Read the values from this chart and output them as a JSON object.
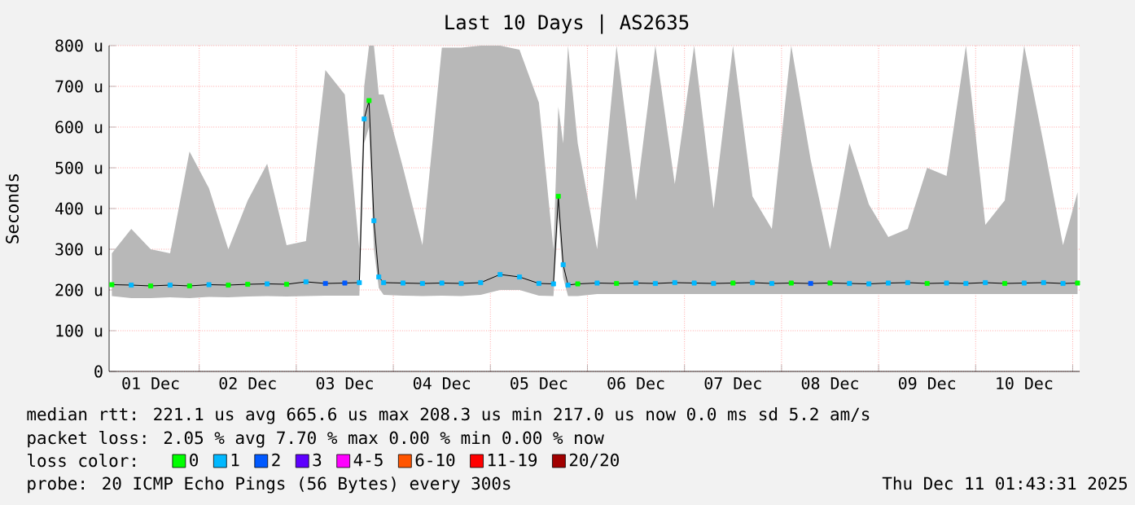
{
  "chart_data": {
    "type": "line",
    "title": "Last 10 Days | AS2635",
    "ylabel": "Seconds",
    "xlim": [
      "2025-12-01T01:43",
      "2025-12-11T01:43"
    ],
    "ylim": [
      0,
      800
    ],
    "xticks": [
      {
        "value": "2025-12-02",
        "label": null
      },
      {
        "value": "2025-12-03",
        "label": null
      },
      {
        "value": "2025-12-04",
        "label": null
      },
      {
        "value": "2025-12-05",
        "label": null
      },
      {
        "value": "2025-12-06",
        "label": null
      },
      {
        "value": "2025-12-07",
        "label": null
      },
      {
        "value": "2025-12-08",
        "label": null
      },
      {
        "value": "2025-12-09",
        "label": null
      },
      {
        "value": "2025-12-10",
        "label": null
      },
      {
        "value": "2025-12-11",
        "label": null
      },
      {
        "value": "2025-12-01T12:00",
        "label": "01 Dec"
      },
      {
        "value": "2025-12-02T12:00",
        "label": "02 Dec"
      },
      {
        "value": "2025-12-03T12:00",
        "label": "03 Dec"
      },
      {
        "value": "2025-12-04T12:00",
        "label": "04 Dec"
      },
      {
        "value": "2025-12-05T12:00",
        "label": "05 Dec"
      },
      {
        "value": "2025-12-06T12:00",
        "label": "06 Dec"
      },
      {
        "value": "2025-12-07T12:00",
        "label": "07 Dec"
      },
      {
        "value": "2025-12-08T12:00",
        "label": "08 Dec"
      },
      {
        "value": "2025-12-09T12:00",
        "label": "09 Dec"
      },
      {
        "value": "2025-12-10T12:00",
        "label": "10 Dec"
      }
    ],
    "yticks": [
      0,
      {
        "value": 100,
        "label": "100 u"
      },
      {
        "value": 200,
        "label": "200 u"
      },
      {
        "value": 300,
        "label": "300 u"
      },
      {
        "value": 400,
        "label": "400 u"
      },
      {
        "value": 500,
        "label": "500 u"
      },
      {
        "value": 600,
        "label": "600 u"
      },
      {
        "value": 700,
        "label": "700 u"
      },
      {
        "value": 800,
        "label": "800 u"
      }
    ],
    "grid": true,
    "legend": "bottom",
    "legend_title": "loss color:",
    "marker": "square",
    "series": [
      {
        "color": "#000000",
        "marker": "none",
        "x": [
          "2025-12-01T02:24",
          "2025-12-01T07:12",
          "2025-12-01T12:00",
          "2025-12-01T16:48",
          "2025-12-01T21:36",
          "2025-12-02T02:24",
          "2025-12-02T07:12",
          "2025-12-02T12:00",
          "2025-12-02T16:48",
          "2025-12-02T21:36",
          "2025-12-03T02:24",
          "2025-12-03T07:12",
          "2025-12-03T12:00",
          "2025-12-03T15:36",
          "2025-12-03T16:48",
          "2025-12-03T18:00",
          "2025-12-03T19:12",
          "2025-12-03T20:24",
          "2025-12-03T21:36",
          "2025-12-04T02:24",
          "2025-12-04T07:12",
          "2025-12-04T12:00",
          "2025-12-04T16:48",
          "2025-12-04T21:36",
          "2025-12-05T02:24",
          "2025-12-05T07:12",
          "2025-12-05T12:00",
          "2025-12-05T15:36",
          "2025-12-05T16:48",
          "2025-12-05T18:00",
          "2025-12-05T19:12",
          "2025-12-05T21:36",
          "2025-12-06T02:24",
          "2025-12-06T07:12",
          "2025-12-06T12:00",
          "2025-12-06T16:48",
          "2025-12-06T21:36",
          "2025-12-07T02:24",
          "2025-12-07T07:12",
          "2025-12-07T12:00",
          "2025-12-07T16:48",
          "2025-12-07T21:36",
          "2025-12-08T02:24",
          "2025-12-08T07:12",
          "2025-12-08T12:00",
          "2025-12-08T16:48",
          "2025-12-08T21:36",
          "2025-12-09T02:24",
          "2025-12-09T07:12",
          "2025-12-09T12:00",
          "2025-12-09T16:48",
          "2025-12-09T21:36",
          "2025-12-10T02:24",
          "2025-12-10T07:12",
          "2025-12-10T12:00",
          "2025-12-10T16:48",
          "2025-12-10T21:36",
          "2025-12-11T01:12"
        ],
        "values": [
          213,
          212,
          210,
          212,
          210,
          213,
          212,
          214,
          215,
          214,
          220,
          216,
          217,
          218,
          620,
          665,
          370,
          232,
          218,
          217,
          216,
          217,
          216,
          218,
          238,
          232,
          216,
          215,
          430,
          262,
          212,
          215,
          217,
          216,
          217,
          216,
          218,
          217,
          216,
          217,
          218,
          216,
          217,
          216,
          217,
          216,
          215,
          217,
          218,
          216,
          217,
          216,
          218,
          216,
          217,
          218,
          216,
          217
        ],
        "lower": [
          185,
          180,
          180,
          182,
          180,
          183,
          182,
          184,
          185,
          184,
          185,
          186,
          186,
          186,
          560,
          600,
          300,
          205,
          188,
          186,
          185,
          186,
          185,
          188,
          200,
          200,
          186,
          185,
          380,
          230,
          185,
          185,
          190,
          190,
          190,
          190,
          190,
          190,
          190,
          190,
          190,
          190,
          190,
          190,
          190,
          190,
          190,
          190,
          190,
          190,
          190,
          190,
          190,
          190,
          190,
          190,
          190,
          190
        ],
        "upper": [
          290,
          350,
          300,
          290,
          540,
          450,
          300,
          420,
          510,
          310,
          320,
          740,
          680,
          300,
          700,
          800,
          800,
          680,
          680,
          500,
          310,
          795,
          795,
          800,
          800,
          790,
          660,
          300,
          650,
          560,
          800,
          560,
          300,
          800,
          420,
          800,
          460,
          800,
          400,
          800,
          430,
          350,
          800,
          520,
          300,
          560,
          410,
          330,
          350,
          500,
          480,
          800,
          360,
          420,
          800,
          560,
          310,
          440
        ]
      },
      {
        "type": "scatter",
        "name": "0",
        "color": "#00ff00",
        "x": [
          "2025-12-01T02:24",
          "2025-12-01T12:00",
          "2025-12-01T21:36",
          "2025-12-02T07:12",
          "2025-12-02T12:00",
          "2025-12-02T21:36",
          "2025-12-03T18:00",
          "2025-12-05T16:48",
          "2025-12-05T21:36",
          "2025-12-06T07:12",
          "2025-12-07T12:00",
          "2025-12-08T02:24",
          "2025-12-08T12:00",
          "2025-12-09T12:00",
          "2025-12-10T07:12",
          "2025-12-11T01:12"
        ],
        "values": [
          213,
          210,
          210,
          212,
          214,
          214,
          665,
          430,
          215,
          216,
          217,
          217,
          217,
          216,
          216,
          217
        ]
      },
      {
        "type": "scatter",
        "name": "1",
        "color": "#00b8ff",
        "x": [
          "2025-12-01T07:12",
          "2025-12-01T16:48",
          "2025-12-02T02:24",
          "2025-12-02T16:48",
          "2025-12-03T02:24",
          "2025-12-03T15:36",
          "2025-12-03T16:48",
          "2025-12-03T19:12",
          "2025-12-03T20:24",
          "2025-12-03T21:36",
          "2025-12-04T02:24",
          "2025-12-04T07:12",
          "2025-12-04T12:00",
          "2025-12-04T16:48",
          "2025-12-04T21:36",
          "2025-12-05T02:24",
          "2025-12-05T07:12",
          "2025-12-05T12:00",
          "2025-12-05T15:36",
          "2025-12-05T18:00",
          "2025-12-05T19:12",
          "2025-12-06T02:24",
          "2025-12-06T12:00",
          "2025-12-06T16:48",
          "2025-12-06T21:36",
          "2025-12-07T02:24",
          "2025-12-07T07:12",
          "2025-12-07T16:48",
          "2025-12-07T21:36",
          "2025-12-08T16:48",
          "2025-12-08T21:36",
          "2025-12-09T02:24",
          "2025-12-09T07:12",
          "2025-12-09T16:48",
          "2025-12-09T21:36",
          "2025-12-10T02:24",
          "2025-12-10T12:00",
          "2025-12-10T16:48",
          "2025-12-10T21:36"
        ],
        "values": [
          212,
          212,
          213,
          215,
          220,
          218,
          620,
          370,
          232,
          218,
          217,
          216,
          217,
          216,
          218,
          238,
          232,
          216,
          215,
          262,
          212,
          217,
          217,
          216,
          218,
          217,
          216,
          218,
          216,
          216,
          215,
          217,
          218,
          217,
          216,
          218,
          217,
          218,
          216
        ]
      },
      {
        "type": "scatter",
        "name": "2",
        "color": "#0059ff",
        "x": [
          "2025-12-03T07:12",
          "2025-12-03T12:00",
          "2025-12-08T07:12"
        ],
        "values": [
          216,
          217,
          216
        ]
      },
      {
        "type": "scatter",
        "name": "3",
        "color": "#5e00ff"
      },
      {
        "type": "scatter",
        "name": "4-5",
        "color": "#ff00ff"
      },
      {
        "type": "scatter",
        "name": "6-10",
        "color": "#ff5500"
      },
      {
        "type": "scatter",
        "name": "11-19",
        "color": "#ff0000"
      },
      {
        "type": "scatter",
        "name": "20/20",
        "color": "#a10000"
      }
    ],
    "annotations": [
      "median rtt: 221.1 us avg 665.6 us max 208.3 us min 217.0 us now 0.0 ms sd 5.2 am/s",
      "packet loss: 2.05 % avg 7.70 % max 0.00 % min 0.00 % now",
      "probe: 20 ICMP Echo Pings (56 Bytes) every 300s",
      "Thu Dec 11 01:43:31 2025"
    ]
  }
}
